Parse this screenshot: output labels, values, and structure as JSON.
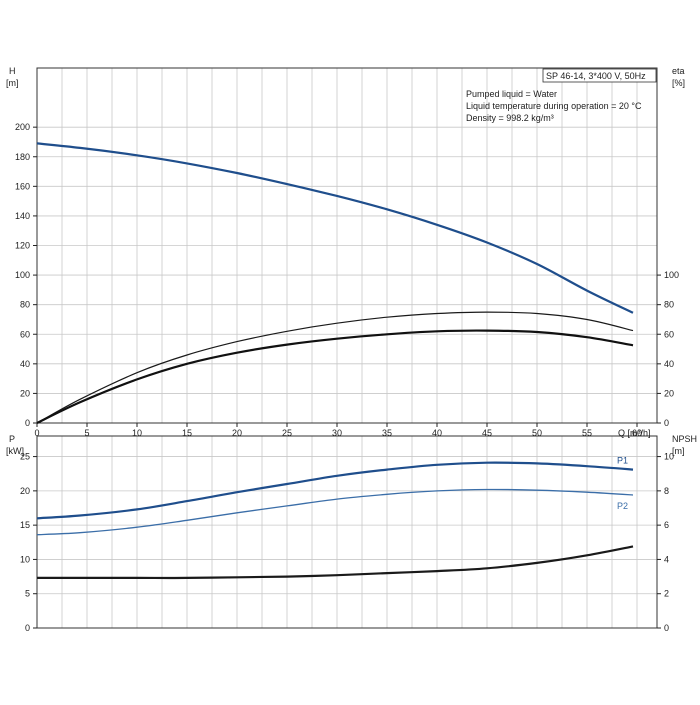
{
  "chart_data": {
    "type": "line",
    "title": "SP 46-14, 3*400 V, 50Hz",
    "info_lines": [
      "Pumped liquid = Water",
      "Liquid temperature during operation = 20 °C",
      "Density = 998.2 kg/m³"
    ],
    "xlabel": "Q [m³/h]",
    "xlim": [
      0,
      62
    ],
    "x_ticks": [
      "0",
      "5",
      "10",
      "15",
      "20",
      "25",
      "30",
      "35",
      "40",
      "45",
      "50",
      "55",
      "60"
    ],
    "top_panel": {
      "y_left_label_line1": "H",
      "y_left_label_line2": "[m]",
      "y_left_lim": [
        0,
        240
      ],
      "y_left_ticks": [
        "0",
        "20",
        "40",
        "60",
        "80",
        "100",
        "120",
        "140",
        "160",
        "180",
        "200"
      ],
      "y_right_label_line1": "eta",
      "y_right_label_line2": "[%]",
      "y_right_lim": [
        0,
        240
      ],
      "y_right_ticks": [
        "0",
        "20",
        "40",
        "60",
        "80",
        "100"
      ],
      "series": [
        {
          "axis": "left",
          "color": "#1f4e8c",
          "x": [
            0,
            4.3,
            10,
            15,
            20,
            25,
            30,
            35,
            40,
            45,
            50,
            55,
            59.6
          ],
          "y": [
            189,
            186,
            181,
            175.5,
            169,
            161.5,
            153.5,
            144.5,
            134,
            122,
            107.5,
            89.5,
            74.5
          ],
          "style": "head"
        },
        {
          "axis": "right",
          "color": "#1a1a1a",
          "x": [
            0,
            4.3,
            10,
            15,
            20,
            25,
            30,
            35,
            40,
            45,
            50,
            55,
            59.6
          ],
          "y": [
            0,
            16,
            34,
            46,
            55,
            62,
            67.5,
            71.5,
            74,
            75,
            74,
            70,
            62.5
          ],
          "style": "thin"
        },
        {
          "axis": "right",
          "color": "#111111",
          "x": [
            0,
            4.3,
            10,
            15,
            20,
            25,
            30,
            35,
            40,
            45,
            50,
            55,
            59.6
          ],
          "y": [
            0,
            14,
            29.5,
            40,
            47.5,
            53,
            57,
            60,
            62,
            62.5,
            61.5,
            58,
            52.5
          ],
          "style": "thick"
        }
      ]
    },
    "bottom_panel": {
      "y_left_label_line1": "P",
      "y_left_label_line2": "[kW]",
      "y_left_lim": [
        0,
        28
      ],
      "y_left_ticks": [
        "0",
        "5",
        "10",
        "15",
        "20",
        "25"
      ],
      "y_right_label_line1": "NPSH",
      "y_right_label_line2": "[m]",
      "y_right_lim": [
        0,
        11.2
      ],
      "y_right_ticks": [
        "0",
        "2",
        "4",
        "6",
        "8",
        "10"
      ],
      "series": [
        {
          "name": "P1",
          "axis": "left",
          "color": "#1f4e8c",
          "x": [
            0,
            4.3,
            10,
            15,
            20,
            25,
            30,
            35,
            40,
            45,
            50,
            55,
            59.6
          ],
          "y": [
            16,
            16.4,
            17.3,
            18.5,
            19.8,
            21,
            22.2,
            23.1,
            23.8,
            24.1,
            24,
            23.6,
            23.1
          ],
          "style": "thick-blue"
        },
        {
          "name": "P2",
          "axis": "left",
          "color": "#3b6ea8",
          "x": [
            0,
            4.3,
            10,
            15,
            20,
            25,
            30,
            35,
            40,
            45,
            50,
            55,
            59.6
          ],
          "y": [
            13.6,
            13.9,
            14.7,
            15.7,
            16.8,
            17.8,
            18.8,
            19.5,
            20,
            20.2,
            20.1,
            19.8,
            19.4
          ],
          "style": "thin-blue"
        },
        {
          "axis": "left",
          "color": "#1a1a1a",
          "x": [
            0,
            4.3,
            10,
            15,
            20,
            25,
            30,
            35,
            40,
            45,
            50,
            55,
            59.6
          ],
          "y": [
            7.3,
            7.3,
            7.3,
            7.3,
            7.4,
            7.5,
            7.7,
            8.0,
            8.3,
            8.7,
            9.5,
            10.6,
            11.9
          ],
          "style": "npsh"
        }
      ]
    }
  }
}
